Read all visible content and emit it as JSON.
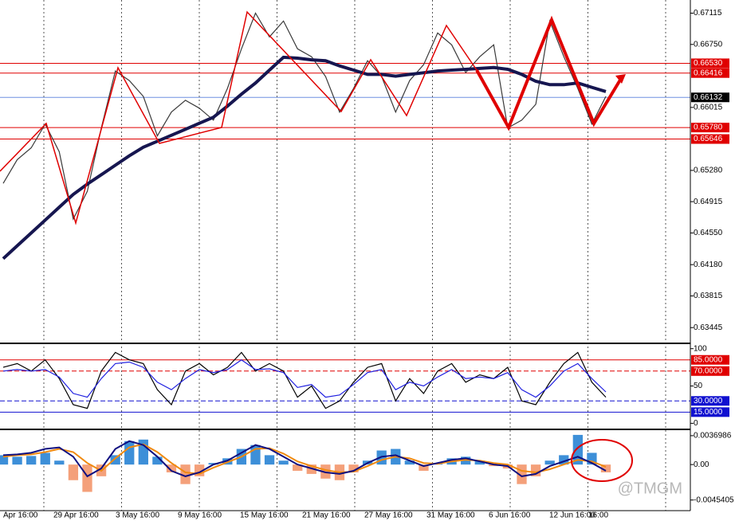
{
  "chart_data": [
    {
      "type": "line",
      "ylim": [
        0.6328,
        0.6725
      ],
      "yticks": [
        0.67115,
        {
          "value": 0.6675,
          "label": "0.66750"
        },
        0.66015,
        {
          "value": 0.6528,
          "label": "0.65280"
        },
        0.64915,
        {
          "value": 0.6455,
          "label": "0.64550"
        },
        {
          "value": 0.6418,
          "label": "0.64180"
        },
        0.63815,
        0.63445
      ],
      "levels": [
        {
          "value": 0.6653,
          "label": "0.66530",
          "color": "#e00000"
        },
        {
          "value": 0.66416,
          "label": "0.66416",
          "color": "#e00000"
        },
        {
          "value": 0.66132,
          "label": "0.66132",
          "color": "#000000",
          "line_color": "#6f8fe0"
        },
        {
          "value": 0.6578,
          "label": "0.65780",
          "color": "#e00000"
        },
        {
          "value": 0.65646,
          "label": "0.65646",
          "color": "#e00000"
        }
      ],
      "series": [
        {
          "color": "#3a3a3a",
          "values": [
            0.65128,
            0.65405,
            0.65544,
            0.65821,
            0.65497,
            0.64712,
            0.65035,
            0.65775,
            0.6644,
            0.66329,
            0.66144,
            0.65682,
            0.6596,
            0.66098,
            0.66006,
            0.65867,
            0.66237,
            0.66699,
            0.67115,
            0.66838,
            0.67023,
            0.66699,
            0.66607,
            0.66376,
            0.6596,
            0.66237,
            0.6656,
            0.66376,
            0.6596,
            0.66329,
            0.66514,
            0.66884,
            0.66745,
            0.66422,
            0.66607,
            0.66745,
            0.65775,
            0.65867,
            0.66052,
            0.67023,
            0.66607,
            0.66237,
            0.65821,
            0.66144
          ]
        },
        {
          "color": "#161650",
          "values": [
            0.6425,
            0.644,
            0.6455,
            0.647,
            0.6485,
            0.65,
            0.6512,
            0.6523,
            0.6534,
            0.6545,
            0.6555,
            0.6562,
            0.6569,
            0.6576,
            0.6583,
            0.659,
            0.6603,
            0.6617,
            0.663,
            0.6645,
            0.666,
            0.6659,
            0.6657,
            0.6656,
            0.665,
            0.6645,
            0.664,
            0.664,
            0.6638,
            0.664,
            0.6642,
            0.6644,
            0.6645,
            0.6646,
            0.6647,
            0.6648,
            0.6646,
            0.664,
            0.6632,
            0.6628,
            0.6628,
            0.663,
            0.6625,
            0.662
          ]
        }
      ]
    },
    {
      "type": "line",
      "ylim": [
        -6,
        105
      ],
      "yticks": [
        100,
        50,
        0
      ],
      "levels": [
        {
          "value": 85,
          "label": "85.0000",
          "color": "#e00000"
        },
        {
          "value": 70,
          "label": "70.0000",
          "color": "#e00000"
        },
        {
          "value": 30,
          "label": "30.0000",
          "color": "#1010d0"
        },
        {
          "value": 15,
          "label": "15.0000",
          "color": "#1010d0"
        }
      ],
      "series": [
        {
          "color": "#000000",
          "values": [
            75,
            80,
            70,
            85,
            60,
            25,
            20,
            70,
            95,
            85,
            80,
            45,
            25,
            70,
            80,
            65,
            75,
            95,
            70,
            80,
            70,
            35,
            50,
            20,
            30,
            55,
            75,
            80,
            30,
            60,
            40,
            70,
            80,
            55,
            65,
            60,
            75,
            30,
            25,
            55,
            80,
            95,
            55,
            35
          ]
        },
        {
          "color": "#2020e0",
          "values": [
            70,
            72,
            70,
            72,
            62,
            40,
            35,
            60,
            80,
            82,
            75,
            55,
            45,
            60,
            72,
            68,
            72,
            85,
            72,
            73,
            68,
            48,
            52,
            35,
            38,
            52,
            68,
            72,
            45,
            55,
            50,
            62,
            72,
            60,
            62,
            60,
            68,
            45,
            35,
            50,
            70,
            80,
            60,
            42
          ]
        }
      ]
    },
    {
      "type": "macd",
      "ylim": [
        -0.0058,
        0.0043
      ],
      "yticks": [
        0.0036986,
        {
          "value": 0,
          "label": "0.00"
        },
        -0.0045405
      ],
      "bars": {
        "pos_color": "#3d8fd8",
        "neg_color": "#f4a07a",
        "values": [
          0.0012,
          0.001,
          0.0011,
          0.0015,
          0.0005,
          -0.002,
          -0.0035,
          -0.0015,
          0.0012,
          0.003,
          0.0032,
          0.001,
          -0.001,
          -0.0025,
          -0.0015,
          0.0002,
          0.0008,
          0.002,
          0.0025,
          0.0012,
          0.0005,
          -0.0008,
          -0.0012,
          -0.0018,
          -0.002,
          -0.001,
          0.0005,
          0.0018,
          0.002,
          0.0005,
          -0.0008,
          0.0002,
          0.0008,
          0.001,
          0.0005,
          -0.0002,
          -0.0005,
          -0.0025,
          -0.0015,
          0.0005,
          0.0012,
          0.0038,
          0.0015,
          -0.001
        ]
      },
      "series": [
        {
          "color": "#f08a10",
          "values": [
            0.001,
            0.0012,
            0.0013,
            0.0016,
            0.002,
            0.0016,
            0.0002,
            -0.0008,
            0.0008,
            0.0022,
            0.0026,
            0.0016,
            0.0002,
            -0.001,
            -0.0012,
            -0.0004,
            0.0003,
            0.001,
            0.002,
            0.0021,
            0.0014,
            0.0004,
            -0.0002,
            -0.0007,
            -0.001,
            -0.0009,
            -0.0002,
            0.0006,
            0.001,
            0.0008,
            0.0002,
            0.0001,
            0.0004,
            0.0006,
            0.0005,
            0.0002,
            0,
            -0.0008,
            -0.001,
            -0.0006,
            0,
            0.0006,
            0.0004,
            -0.0003
          ]
        },
        {
          "color": "#101080",
          "values": [
            0.0012,
            0.0013,
            0.0015,
            0.002,
            0.0022,
            0.001,
            -0.0015,
            -0.0005,
            0.002,
            0.003,
            0.0025,
            0.001,
            -0.0008,
            -0.0015,
            -0.001,
            0,
            0.0005,
            0.0015,
            0.0025,
            0.002,
            0.001,
            0,
            -0.0005,
            -0.001,
            -0.0012,
            -0.0008,
            0.0002,
            0.001,
            0.0012,
            0.0005,
            -0.0002,
            0.0002,
            0.0006,
            0.0008,
            0.0004,
            0,
            -0.0002,
            -0.0015,
            -0.0012,
            -0.0002,
            0.0004,
            0.001,
            0.0002,
            -0.0008
          ]
        }
      ]
    }
  ],
  "time_axis": [
    "Apr 16:00",
    "29 Apr 16:00",
    "3 May 16:00",
    "9 May 16:00",
    "15 May 16:00",
    "21 May 16:00",
    "27 May 16:00",
    "31 May 16:00",
    "6 Jun 16:00",
    "12 Jun 16:00",
    "16:00"
  ],
  "watermark": "@TMGM"
}
